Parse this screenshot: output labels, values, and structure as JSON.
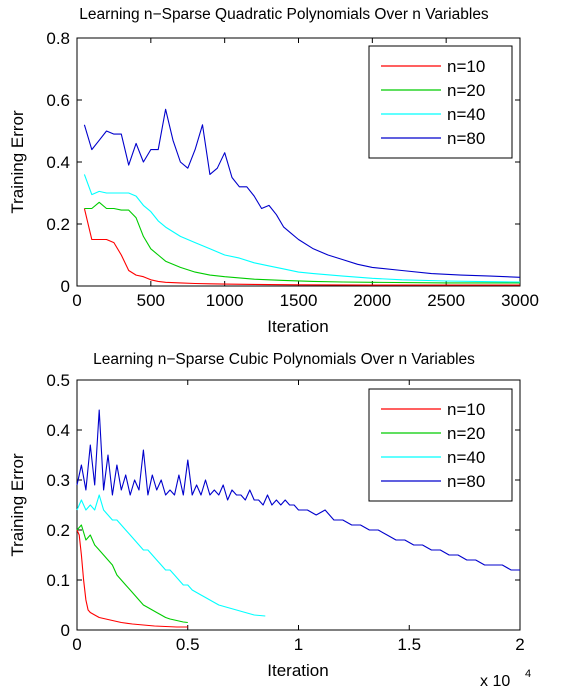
{
  "chart_data": [
    {
      "type": "line",
      "title": "Learning n−Sparse Quadratic Polynomials Over n Variables",
      "xlabel": "Iteration",
      "ylabel": "Training Error",
      "xlim": [
        0,
        3000
      ],
      "ylim": [
        0,
        0.8
      ],
      "x_ticks": [
        0,
        500,
        1000,
        1500,
        2000,
        2500,
        3000
      ],
      "y_ticks": [
        0,
        0.2,
        0.4,
        0.6,
        0.8
      ],
      "x_tick_labels": [
        "0",
        "500",
        "1000",
        "1500",
        "2000",
        "2500",
        "3000"
      ],
      "y_tick_labels": [
        "0",
        "0.2",
        "0.4",
        "0.6",
        "0.8"
      ],
      "x_multiplier_label": "",
      "legend_position": "top-right",
      "grid": false,
      "series": [
        {
          "name": "n=10",
          "color": "#ff0000",
          "x": [
            50,
            100,
            150,
            200,
            250,
            300,
            350,
            400,
            450,
            500,
            550,
            600,
            700,
            800,
            900,
            1000,
            1200,
            1500,
            2000,
            2500,
            3000
          ],
          "y": [
            0.25,
            0.15,
            0.15,
            0.15,
            0.14,
            0.1,
            0.05,
            0.035,
            0.03,
            0.02,
            0.015,
            0.012,
            0.01,
            0.008,
            0.007,
            0.006,
            0.005,
            0.004,
            0.003,
            0.003,
            0.003
          ]
        },
        {
          "name": "n=20",
          "color": "#00cc00",
          "x": [
            50,
            100,
            150,
            200,
            250,
            300,
            350,
            400,
            450,
            500,
            550,
            600,
            700,
            800,
            900,
            1000,
            1200,
            1400,
            1600,
            1800,
            2000,
            2500,
            3000
          ],
          "y": [
            0.25,
            0.25,
            0.27,
            0.25,
            0.25,
            0.245,
            0.245,
            0.22,
            0.16,
            0.12,
            0.1,
            0.08,
            0.06,
            0.045,
            0.035,
            0.03,
            0.022,
            0.018,
            0.015,
            0.013,
            0.012,
            0.01,
            0.01
          ]
        },
        {
          "name": "n=40",
          "color": "#00ffff",
          "x": [
            50,
            100,
            150,
            200,
            250,
            300,
            350,
            400,
            450,
            500,
            550,
            600,
            700,
            800,
            900,
            1000,
            1100,
            1200,
            1300,
            1400,
            1500,
            1600,
            1800,
            2000,
            2200,
            2500,
            2800,
            3000
          ],
          "y": [
            0.36,
            0.295,
            0.305,
            0.3,
            0.3,
            0.3,
            0.3,
            0.29,
            0.26,
            0.24,
            0.21,
            0.19,
            0.16,
            0.14,
            0.12,
            0.1,
            0.09,
            0.075,
            0.065,
            0.055,
            0.045,
            0.04,
            0.032,
            0.025,
            0.02,
            0.016,
            0.014,
            0.013
          ]
        },
        {
          "name": "n=80",
          "color": "#0000cc",
          "x": [
            50,
            100,
            150,
            200,
            250,
            300,
            350,
            400,
            450,
            500,
            550,
            600,
            650,
            700,
            750,
            800,
            850,
            900,
            950,
            1000,
            1050,
            1100,
            1150,
            1200,
            1250,
            1300,
            1350,
            1400,
            1450,
            1500,
            1600,
            1700,
            1800,
            1900,
            2000,
            2200,
            2400,
            2600,
            2800,
            3000
          ],
          "y": [
            0.52,
            0.44,
            0.47,
            0.5,
            0.49,
            0.49,
            0.39,
            0.46,
            0.4,
            0.44,
            0.44,
            0.57,
            0.47,
            0.4,
            0.38,
            0.44,
            0.52,
            0.36,
            0.38,
            0.43,
            0.35,
            0.32,
            0.32,
            0.29,
            0.25,
            0.26,
            0.23,
            0.19,
            0.17,
            0.15,
            0.12,
            0.1,
            0.085,
            0.07,
            0.06,
            0.05,
            0.04,
            0.035,
            0.032,
            0.028
          ]
        }
      ]
    },
    {
      "type": "line",
      "title": "Learning n−Sparse Cubic Polynomials Over n Variables",
      "xlabel": "Iteration",
      "ylabel": "Training Error",
      "xlim": [
        0,
        20000
      ],
      "ylim": [
        0,
        0.5
      ],
      "x_ticks": [
        0,
        5000,
        10000,
        15000,
        20000
      ],
      "y_ticks": [
        0,
        0.1,
        0.2,
        0.3,
        0.4,
        0.5
      ],
      "x_tick_labels": [
        "0",
        "0.5",
        "1",
        "1.5",
        "2"
      ],
      "y_tick_labels": [
        "0",
        "0.1",
        "0.2",
        "0.3",
        "0.4",
        "0.5"
      ],
      "x_multiplier_label": "x 10",
      "x_multiplier_power": "4",
      "legend_position": "top-right",
      "grid": false,
      "series": [
        {
          "name": "n=10",
          "color": "#ff0000",
          "x": [
            0,
            100,
            200,
            300,
            400,
            500,
            600,
            800,
            1000,
            1500,
            2000,
            2500,
            3000,
            3500,
            4000,
            4500,
            5000
          ],
          "y": [
            0.2,
            0.19,
            0.15,
            0.1,
            0.06,
            0.04,
            0.035,
            0.03,
            0.025,
            0.02,
            0.015,
            0.012,
            0.01,
            0.008,
            0.007,
            0.006,
            0.006
          ]
        },
        {
          "name": "n=20",
          "color": "#00cc00",
          "x": [
            0,
            200,
            400,
            600,
            800,
            1000,
            1200,
            1400,
            1600,
            1800,
            2000,
            2200,
            2400,
            2600,
            2800,
            3000,
            3200,
            3400,
            3600,
            3800,
            4000,
            4200,
            4400,
            4600,
            4800,
            5000
          ],
          "y": [
            0.2,
            0.21,
            0.18,
            0.19,
            0.17,
            0.16,
            0.15,
            0.14,
            0.13,
            0.11,
            0.1,
            0.09,
            0.08,
            0.07,
            0.06,
            0.05,
            0.045,
            0.04,
            0.035,
            0.03,
            0.025,
            0.022,
            0.02,
            0.018,
            0.016,
            0.015
          ]
        },
        {
          "name": "n=40",
          "color": "#00ffff",
          "x": [
            0,
            200,
            400,
            600,
            800,
            1000,
            1200,
            1400,
            1600,
            1800,
            2000,
            2200,
            2400,
            2600,
            2800,
            3000,
            3200,
            3400,
            3600,
            3800,
            4000,
            4200,
            4400,
            4600,
            4800,
            5000,
            5200,
            5400,
            5600,
            5800,
            6000,
            6400,
            6800,
            7200,
            7600,
            8000,
            8500
          ],
          "y": [
            0.24,
            0.26,
            0.24,
            0.25,
            0.24,
            0.27,
            0.24,
            0.23,
            0.22,
            0.22,
            0.21,
            0.2,
            0.19,
            0.18,
            0.17,
            0.16,
            0.16,
            0.15,
            0.14,
            0.13,
            0.12,
            0.12,
            0.11,
            0.1,
            0.09,
            0.09,
            0.08,
            0.075,
            0.07,
            0.065,
            0.06,
            0.05,
            0.045,
            0.04,
            0.035,
            0.03,
            0.028
          ]
        },
        {
          "name": "n=80",
          "color": "#0000cc",
          "x": [
            0,
            200,
            400,
            600,
            800,
            1000,
            1200,
            1400,
            1600,
            1800,
            2000,
            2200,
            2400,
            2600,
            2800,
            3000,
            3200,
            3400,
            3600,
            3800,
            4000,
            4200,
            4400,
            4600,
            4800,
            5000,
            5200,
            5400,
            5600,
            5800,
            6000,
            6200,
            6400,
            6600,
            6800,
            7000,
            7200,
            7400,
            7600,
            7800,
            8000,
            8200,
            8400,
            8600,
            8800,
            9000,
            9200,
            9400,
            9600,
            9800,
            10000,
            10400,
            10800,
            11200,
            11600,
            12000,
            12400,
            12800,
            13200,
            13600,
            14000,
            14400,
            14800,
            15200,
            15600,
            16000,
            16400,
            16800,
            17200,
            17600,
            18000,
            18400,
            18800,
            19200,
            19600,
            20000
          ],
          "y": [
            0.29,
            0.33,
            0.28,
            0.37,
            0.29,
            0.44,
            0.28,
            0.35,
            0.27,
            0.33,
            0.28,
            0.31,
            0.27,
            0.3,
            0.28,
            0.36,
            0.27,
            0.31,
            0.28,
            0.3,
            0.27,
            0.28,
            0.27,
            0.31,
            0.27,
            0.34,
            0.27,
            0.29,
            0.27,
            0.3,
            0.27,
            0.28,
            0.27,
            0.29,
            0.26,
            0.28,
            0.27,
            0.27,
            0.26,
            0.28,
            0.26,
            0.26,
            0.25,
            0.27,
            0.25,
            0.26,
            0.25,
            0.26,
            0.25,
            0.25,
            0.24,
            0.24,
            0.23,
            0.24,
            0.22,
            0.22,
            0.21,
            0.21,
            0.2,
            0.2,
            0.19,
            0.18,
            0.18,
            0.17,
            0.17,
            0.16,
            0.16,
            0.15,
            0.15,
            0.14,
            0.14,
            0.13,
            0.13,
            0.13,
            0.12,
            0.12
          ]
        }
      ]
    }
  ]
}
